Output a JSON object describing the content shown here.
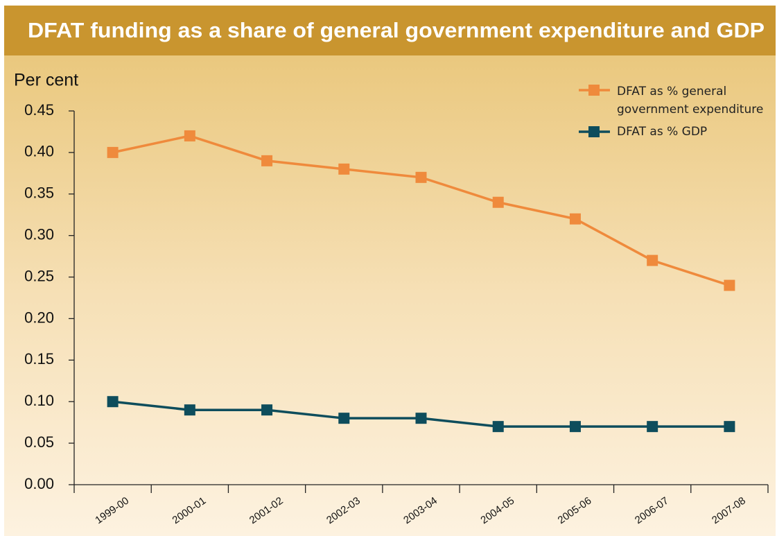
{
  "chart_data": {
    "type": "line",
    "title": "DFAT funding as a share of general government expenditure and GDP",
    "y_label": "Per cent",
    "categories": [
      "1999-00",
      "2000-01",
      "2001-02",
      "2002-03",
      "2003-04",
      "2004-05",
      "2005-06",
      "2006-07",
      "2007-08"
    ],
    "series": [
      {
        "name": "DFAT as % general government expenditure",
        "color": "#ef8a3c",
        "values": [
          0.4,
          0.42,
          0.39,
          0.38,
          0.37,
          0.34,
          0.32,
          0.27,
          0.24
        ]
      },
      {
        "name": "DFAT as % GDP",
        "color": "#0e4d5c",
        "values": [
          0.1,
          0.09,
          0.09,
          0.08,
          0.08,
          0.07,
          0.07,
          0.07,
          0.07
        ]
      }
    ],
    "ylim": [
      0,
      0.45
    ],
    "yticks": [
      {
        "value": 0,
        "label": "0.00"
      },
      0.05,
      {
        "value": 0.1,
        "label": "0.10"
      },
      0.15,
      {
        "value": 0.2,
        "label": "0.20"
      },
      0.25,
      {
        "value": 0.3,
        "label": "0.30"
      },
      0.35,
      {
        "value": 0.4,
        "label": "0.40"
      },
      0.45
    ],
    "grid": false,
    "legend": "top-right"
  }
}
